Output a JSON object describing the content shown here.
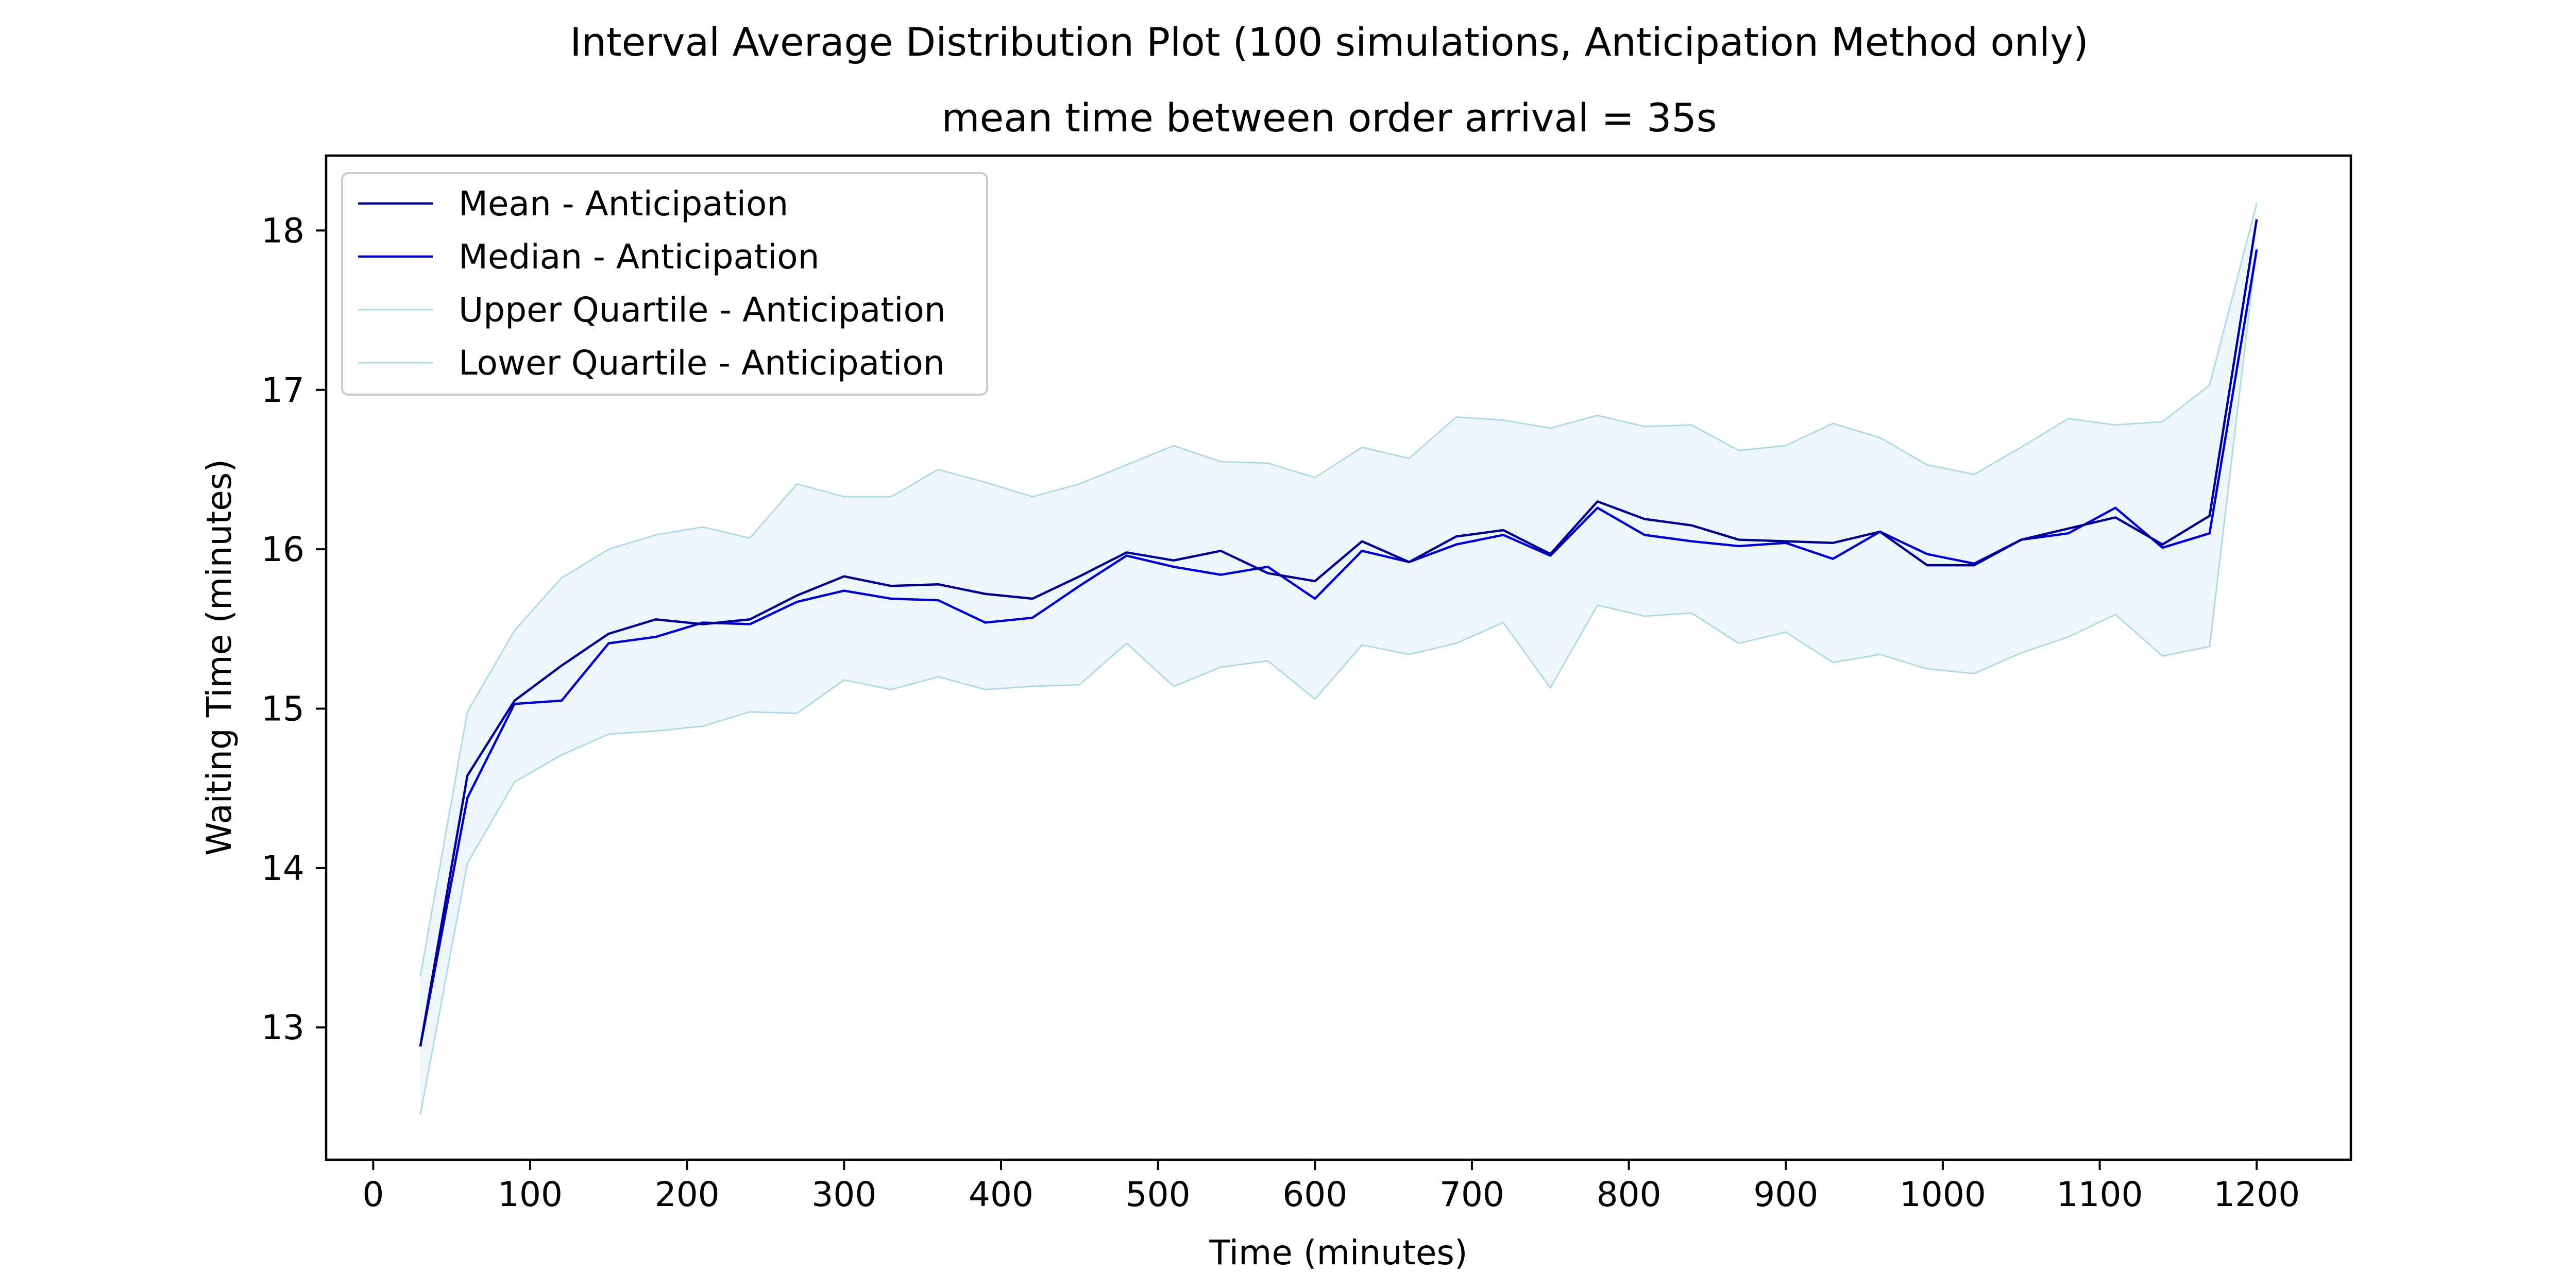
{
  "chart_data": {
    "type": "line",
    "title": "Interval Average Distribution Plot (100 simulations, Anticipation Method only)",
    "subtitle": "mean time between order arrival = 35s",
    "xlabel": "Time (minutes)",
    "ylabel": "Waiting Time (minutes)",
    "xlim": [
      -30,
      1260
    ],
    "ylim": [
      12.17,
      18.47
    ],
    "xticks": [
      0,
      100,
      200,
      300,
      400,
      500,
      600,
      700,
      800,
      900,
      1000,
      1100,
      1200
    ],
    "yticks": [
      13,
      14,
      15,
      16,
      17,
      18
    ],
    "grid": false,
    "legend_position": "top-left",
    "fill_color": "#add8e6",
    "x": [
      30,
      60,
      90,
      120,
      150,
      180,
      210,
      240,
      270,
      300,
      330,
      360,
      390,
      420,
      450,
      480,
      510,
      540,
      570,
      600,
      630,
      660,
      690,
      720,
      750,
      780,
      810,
      840,
      870,
      900,
      930,
      960,
      990,
      1020,
      1050,
      1080,
      1110,
      1140,
      1170,
      1200
    ],
    "series": [
      {
        "name": "Mean - Anticipation",
        "color": "#00008b",
        "values": [
          12.88,
          14.58,
          15.05,
          15.27,
          15.47,
          15.56,
          15.53,
          15.56,
          15.71,
          15.83,
          15.77,
          15.78,
          15.72,
          15.69,
          15.83,
          15.98,
          15.93,
          15.99,
          15.85,
          15.8,
          16.05,
          15.92,
          16.08,
          16.12,
          15.97,
          16.3,
          16.19,
          16.15,
          16.06,
          16.05,
          16.04,
          16.11,
          15.9,
          15.9,
          16.06,
          16.13,
          16.2,
          16.03,
          16.21,
          18.07
        ]
      },
      {
        "name": "Median - Anticipation",
        "color": "#0000cd",
        "values": [
          12.88,
          14.44,
          15.03,
          15.05,
          15.41,
          15.45,
          15.54,
          15.53,
          15.67,
          15.74,
          15.69,
          15.68,
          15.54,
          15.57,
          15.77,
          15.96,
          15.89,
          15.84,
          15.89,
          15.69,
          15.99,
          15.92,
          16.03,
          16.09,
          15.96,
          16.26,
          16.09,
          16.05,
          16.02,
          16.04,
          15.94,
          16.11,
          15.97,
          15.91,
          16.06,
          16.1,
          16.26,
          16.01,
          16.1,
          17.88
        ]
      },
      {
        "name": "Upper Quartile - Anticipation",
        "color": "#add8e6",
        "values": [
          13.32,
          14.98,
          15.49,
          15.82,
          16.0,
          16.09,
          16.14,
          16.07,
          16.41,
          16.33,
          16.33,
          16.5,
          16.42,
          16.33,
          16.41,
          16.53,
          16.65,
          16.55,
          16.54,
          16.45,
          16.64,
          16.57,
          16.83,
          16.81,
          16.76,
          16.84,
          16.77,
          16.78,
          16.62,
          16.65,
          16.79,
          16.7,
          16.53,
          16.47,
          16.64,
          16.82,
          16.78,
          16.8,
          17.03,
          18.17
        ]
      },
      {
        "name": "Lower Quartile - Anticipation",
        "color": "#add8e6",
        "values": [
          12.45,
          14.03,
          14.54,
          14.71,
          14.84,
          14.86,
          14.89,
          14.98,
          14.97,
          15.18,
          15.12,
          15.2,
          15.12,
          15.14,
          15.15,
          15.41,
          15.14,
          15.26,
          15.3,
          15.06,
          15.4,
          15.34,
          15.41,
          15.54,
          15.13,
          15.65,
          15.58,
          15.6,
          15.41,
          15.48,
          15.29,
          15.34,
          15.25,
          15.22,
          15.35,
          15.45,
          15.59,
          15.33,
          15.39,
          17.89
        ]
      }
    ]
  }
}
